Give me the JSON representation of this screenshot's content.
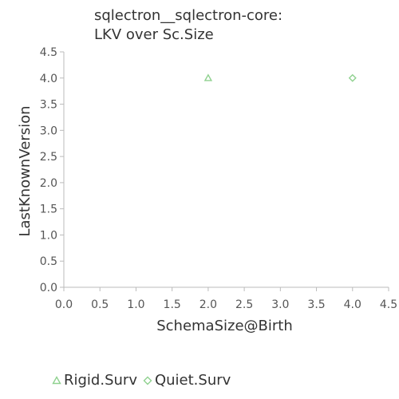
{
  "chart_data": {
    "type": "scatter",
    "title_lines": [
      "sqlectron__sqlectron-core:",
      "LKV over Sc.Size"
    ],
    "xlabel": "SchemaSize@Birth",
    "ylabel": "LastKnownVersion",
    "xlim": [
      0,
      4.5
    ],
    "ylim": [
      0,
      4.5
    ],
    "x_ticks": [
      "0.0",
      "0.5",
      "1.0",
      "1.5",
      "2.0",
      "2.5",
      "3.0",
      "3.5",
      "4.0",
      "4.5"
    ],
    "y_ticks": [
      "0.0",
      "0.5",
      "1.0",
      "1.5",
      "2.0",
      "2.5",
      "3.0",
      "3.5",
      "4.0",
      "4.5"
    ],
    "grid": false,
    "legend_position": "bottom-left",
    "series": [
      {
        "name": "Rigid.Surv",
        "marker": "triangle",
        "color": "#8fd18f",
        "points": [
          {
            "x": 2.0,
            "y": 4.0
          }
        ]
      },
      {
        "name": "Quiet.Surv",
        "marker": "diamond",
        "color": "#8fd18f",
        "points": [
          {
            "x": 4.0,
            "y": 4.0
          }
        ]
      }
    ]
  }
}
